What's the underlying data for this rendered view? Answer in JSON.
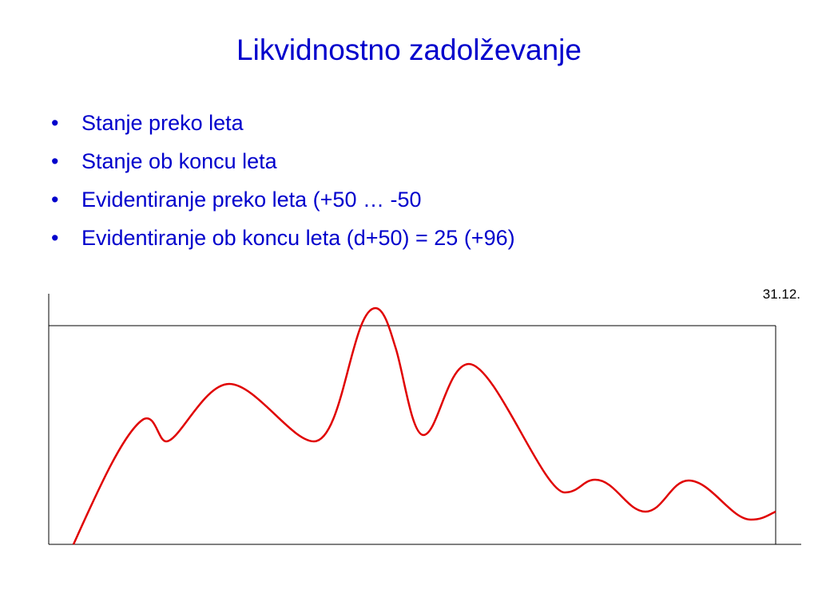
{
  "title": "Likvidnostno zadolževanje",
  "bullets": [
    "Stanje preko leta",
    "Stanje ob koncu leta",
    "Evidentiranje preko leta (+50 … -50",
    "Evidentiranje ob koncu leta (d+50) = 25 (+96)"
  ],
  "diagram": {
    "date_label": "31.12."
  }
}
